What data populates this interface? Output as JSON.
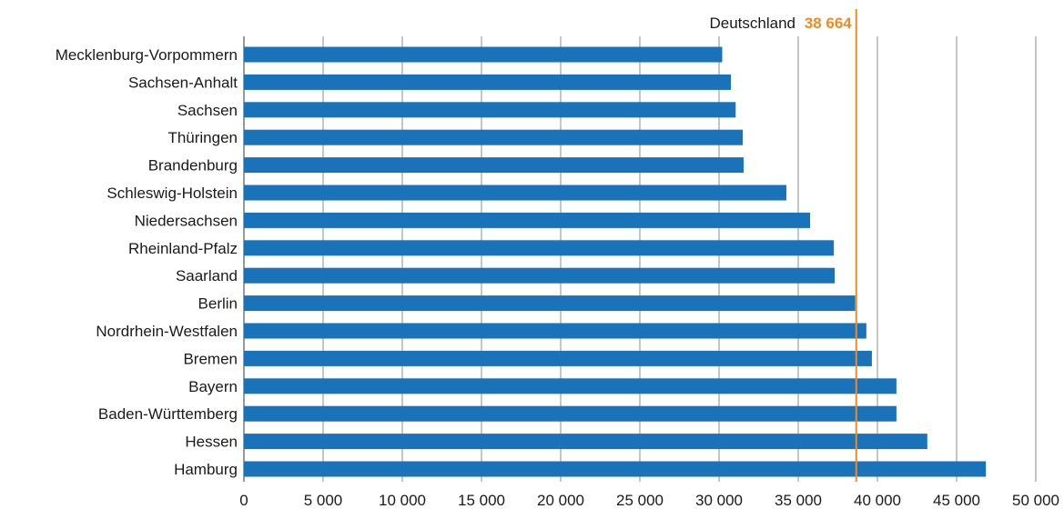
{
  "chart_data": {
    "type": "bar",
    "orientation": "horizontal",
    "categories": [
      "Mecklenburg-Vorpommern",
      "Sachsen-Anhalt",
      "Sachsen",
      "Thüringen",
      "Brandenburg",
      "Schleswig-Holstein",
      "Niedersachsen",
      "Rheinland-Pfalz",
      "Saarland",
      "Berlin",
      "Nordrhein-Westfalen",
      "Bremen",
      "Bayern",
      "Baden-Württemberg",
      "Hessen",
      "Hamburg"
    ],
    "values": [
      30200,
      30750,
      31050,
      31500,
      31550,
      34250,
      35750,
      37250,
      37300,
      38600,
      39300,
      39650,
      41200,
      41200,
      43150,
      46850
    ],
    "xlim": [
      0,
      50000
    ],
    "xticks": [
      0,
      5000,
      10000,
      15000,
      20000,
      25000,
      30000,
      35000,
      40000,
      45000,
      50000
    ],
    "xtick_labels": [
      "0",
      "5 000",
      "10 000",
      "15 000",
      "20 000",
      "25 000",
      "30 000",
      "35 000",
      "40 000",
      "45 000",
      "50 000"
    ],
    "grid": true,
    "bar_color": "#1a72b8",
    "reference_line": {
      "value": 38664,
      "label": "Deutschland",
      "value_label": "38 664",
      "color": "#f08a24"
    }
  }
}
